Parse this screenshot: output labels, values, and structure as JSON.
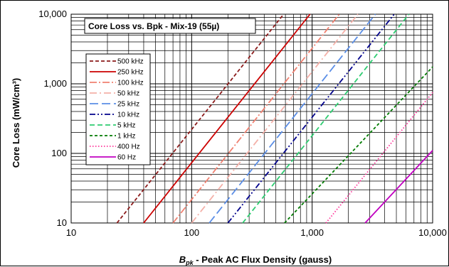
{
  "chart_data": {
    "type": "line",
    "title": "Core Loss vs. Bpk - Mix-19  (55µ)",
    "x_label_symbol": "B",
    "x_label_sub": "pk",
    "x_label_rest": " - Peak AC Flux Density (gauss)",
    "ylabel": "Core Loss (mW/cm³)",
    "x_scale": "log",
    "y_scale": "log",
    "xlim": [
      10,
      10000
    ],
    "ylim": [
      10,
      10000
    ],
    "x_ticks": [
      10,
      100,
      1000,
      10000
    ],
    "x_tick_labels": [
      "10",
      "100",
      "1,000",
      "10,000"
    ],
    "y_ticks": [
      10,
      100,
      1000,
      10000
    ],
    "y_tick_labels": [
      "10",
      "100",
      "1,000",
      "10,000"
    ],
    "grid": true,
    "legend_position": "left",
    "series": [
      {
        "name": "500 kHz",
        "color": "#8b1a1a",
        "dash": "5,3",
        "width": 1.8,
        "points": [
          [
            24,
            10
          ],
          [
            580,
            10000
          ]
        ]
      },
      {
        "name": "250 kHz",
        "color": "#cc0000",
        "dash": "",
        "width": 1.8,
        "points": [
          [
            40,
            10
          ],
          [
            960,
            10000
          ]
        ]
      },
      {
        "name": "100 kHz",
        "color": "#f08070",
        "dash": "10,3,2,3",
        "width": 1.8,
        "points": [
          [
            70,
            10
          ],
          [
            1680,
            10000
          ]
        ]
      },
      {
        "name": "50 kHz",
        "color": "#f4b0a8",
        "dash": "10,4,2,4",
        "width": 1.8,
        "points": [
          [
            100,
            10
          ],
          [
            2400,
            10000
          ]
        ]
      },
      {
        "name": "25 kHz",
        "color": "#5b8ee6",
        "dash": "12,5",
        "width": 1.8,
        "points": [
          [
            140,
            10
          ],
          [
            3350,
            10000
          ]
        ]
      },
      {
        "name": "10 kHz",
        "color": "#00008b",
        "dash": "8,3,2,3,2,3",
        "width": 1.8,
        "points": [
          [
            200,
            10
          ],
          [
            4800,
            10000
          ]
        ]
      },
      {
        "name": "5 kHz",
        "color": "#2ecc71",
        "dash": "7,4",
        "width": 1.8,
        "points": [
          [
            265,
            10
          ],
          [
            6350,
            10000
          ]
        ]
      },
      {
        "name": "1 kHz",
        "color": "#007a00",
        "dash": "4,3",
        "width": 1.8,
        "points": [
          [
            590,
            10
          ],
          [
            10000,
            1750
          ]
        ]
      },
      {
        "name": "400 Hz",
        "color": "#ff3399",
        "dash": "1.5,2.5",
        "width": 1.8,
        "points": [
          [
            1300,
            10
          ],
          [
            10000,
            750
          ]
        ]
      },
      {
        "name": "60 Hz",
        "color": "#c000c0",
        "dash": "",
        "width": 1.8,
        "points": [
          [
            2750,
            10
          ],
          [
            10000,
            110
          ]
        ]
      }
    ]
  }
}
